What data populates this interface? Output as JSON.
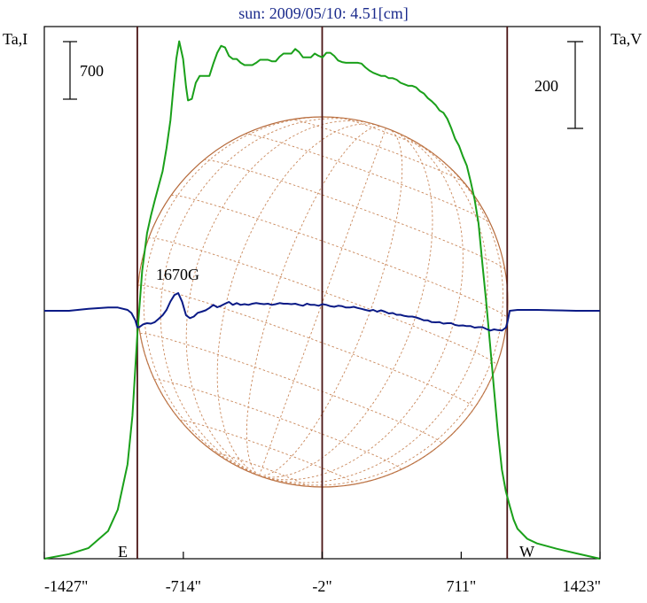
{
  "chart_data": {
    "type": "line",
    "title": "sun: 2009/05/10: 4.51[cm]",
    "left_axis_label": "Ta,I",
    "right_axis_label": "Ta,V",
    "left_scale_bar": "700",
    "right_scale_bar": "200",
    "annotation": "1670G",
    "limb_labels": {
      "east": "E",
      "west": "W"
    },
    "x_ticks": [
      {
        "value": -1427,
        "label": "-1427\""
      },
      {
        "value": -714,
        "label": "-714\""
      },
      {
        "value": -2,
        "label": "-2\""
      },
      {
        "value": 711,
        "label": "711\""
      },
      {
        "value": 1423,
        "label": "1423\""
      }
    ],
    "xlim": [
      -1427,
      1423
    ],
    "vertical_lines_x": [
      -950,
      -2,
      947
    ],
    "solar_radius": 950,
    "grid": false,
    "series": [
      {
        "id": "stokes-i",
        "color": "#1aa01a",
        "x": [
          -1427,
          -1300,
          -1200,
          -1100,
          -1050,
          -1000,
          -975,
          -950,
          -925,
          -900,
          -880,
          -860,
          -840,
          -820,
          -800,
          -780,
          -765,
          -750,
          -735,
          -715,
          -700,
          -690,
          -670,
          -650,
          -630,
          -600,
          -580,
          -560,
          -540,
          -520,
          -500,
          -480,
          -460,
          -440,
          -420,
          -400,
          -380,
          -360,
          -340,
          -320,
          -300,
          -280,
          -260,
          -240,
          -220,
          -200,
          -180,
          -160,
          -140,
          -120,
          -100,
          -80,
          -60,
          -40,
          -20,
          0,
          20,
          40,
          60,
          80,
          100,
          120,
          140,
          160,
          180,
          200,
          220,
          240,
          260,
          280,
          300,
          320,
          340,
          360,
          380,
          400,
          420,
          440,
          460,
          480,
          500,
          520,
          540,
          560,
          580,
          600,
          620,
          640,
          660,
          680,
          700,
          720,
          740,
          760,
          780,
          800,
          820,
          840,
          860,
          880,
          900,
          920,
          940,
          960,
          980,
          1000,
          1050,
          1100,
          1200,
          1300,
          1423
        ],
        "y": [
          0,
          60,
          140,
          360,
          640,
          1230,
          1860,
          2910,
          3750,
          4240,
          4470,
          4670,
          4860,
          5050,
          5350,
          5710,
          6130,
          6510,
          6740,
          6510,
          6150,
          5970,
          5990,
          6200,
          6290,
          6290,
          6290,
          6450,
          6590,
          6680,
          6660,
          6550,
          6510,
          6510,
          6460,
          6430,
          6430,
          6430,
          6460,
          6500,
          6500,
          6500,
          6480,
          6480,
          6540,
          6580,
          6580,
          6580,
          6640,
          6600,
          6530,
          6530,
          6530,
          6580,
          6550,
          6530,
          6590,
          6590,
          6550,
          6490,
          6470,
          6460,
          6460,
          6460,
          6460,
          6450,
          6400,
          6360,
          6330,
          6310,
          6290,
          6290,
          6260,
          6260,
          6240,
          6200,
          6180,
          6160,
          6160,
          6140,
          6090,
          6060,
          6000,
          5960,
          5910,
          5840,
          5810,
          5730,
          5610,
          5470,
          5380,
          5240,
          5120,
          4910,
          4680,
          4370,
          3840,
          3330,
          2770,
          2190,
          1630,
          1160,
          880,
          690,
          510,
          390,
          260,
          200,
          130,
          70,
          0
        ]
      },
      {
        "id": "stokes-v",
        "color": "#0a1a86",
        "x": [
          -1427,
          -1300,
          -1200,
          -1100,
          -1050,
          -1000,
          -980,
          -960,
          -950,
          -940,
          -920,
          -900,
          -880,
          -860,
          -840,
          -820,
          -800,
          -780,
          -760,
          -740,
          -720,
          -700,
          -680,
          -660,
          -640,
          -620,
          -600,
          -580,
          -560,
          -540,
          -520,
          -500,
          -480,
          -460,
          -440,
          -420,
          -400,
          -380,
          -360,
          -340,
          -320,
          -300,
          -280,
          -260,
          -240,
          -220,
          -200,
          -180,
          -160,
          -140,
          -120,
          -100,
          -80,
          -60,
          -40,
          -20,
          0,
          20,
          40,
          60,
          80,
          100,
          120,
          140,
          160,
          180,
          200,
          220,
          240,
          260,
          280,
          300,
          320,
          340,
          360,
          380,
          400,
          420,
          440,
          460,
          480,
          500,
          520,
          540,
          560,
          580,
          600,
          620,
          640,
          660,
          680,
          700,
          720,
          740,
          760,
          780,
          800,
          820,
          840,
          860,
          880,
          900,
          920,
          940,
          947,
          960,
          1000,
          1050,
          1100,
          1200,
          1300,
          1423
        ],
        "y": [
          0,
          0,
          9,
          15,
          15,
          4,
          -10,
          -43,
          -74,
          -74,
          -61,
          -56,
          -58,
          -51,
          -36,
          -20,
          4,
          42,
          71,
          80,
          41,
          -20,
          -33,
          -26,
          -9,
          -4,
          2,
          13,
          27,
          16,
          23,
          32,
          40,
          27,
          35,
          27,
          30,
          27,
          32,
          35,
          32,
          30,
          32,
          27,
          30,
          35,
          32,
          32,
          30,
          32,
          27,
          23,
          32,
          27,
          27,
          23,
          30,
          27,
          21,
          18,
          23,
          21,
          15,
          15,
          18,
          13,
          9,
          4,
          0,
          4,
          -4,
          2,
          -4,
          -12,
          -10,
          -18,
          -18,
          -23,
          -26,
          -26,
          -30,
          -36,
          -43,
          -43,
          -51,
          -52,
          -51,
          -58,
          -56,
          -56,
          -64,
          -67,
          -66,
          -69,
          -69,
          -76,
          -74,
          -74,
          -82,
          -89,
          -84,
          -87,
          -89,
          -76,
          -56,
          0,
          4,
          4,
          4,
          2,
          0,
          0
        ]
      }
    ]
  }
}
